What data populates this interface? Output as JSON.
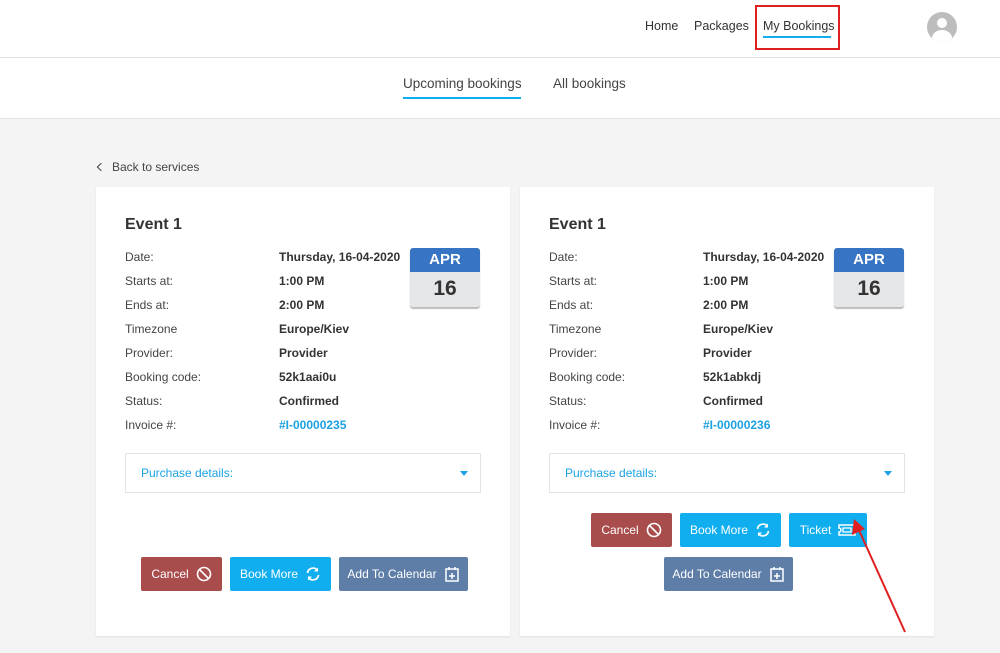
{
  "nav": {
    "items": [
      "Home",
      "Packages",
      "My Bookings"
    ],
    "active": "My Bookings"
  },
  "tabs": [
    "Upcoming bookings",
    "All bookings"
  ],
  "back_link": "Back to services",
  "labels": [
    "Date:",
    "Starts at:",
    "Ends at:",
    "Timezone",
    "Provider:",
    "Booking code:",
    "Status:",
    "Invoice #:"
  ],
  "bookings": [
    {
      "title": "Event 1",
      "values": [
        "Thursday, 16-04-2020",
        "1:00 PM",
        "2:00 PM",
        "Europe/Kiev",
        "Provider",
        "52k1aai0u",
        "Confirmed",
        "#I-00000235"
      ],
      "cal_month": "APR",
      "cal_day": "16",
      "purchase_details": "Purchase details:"
    },
    {
      "title": "Event 1",
      "values": [
        "Thursday, 16-04-2020",
        "1:00 PM",
        "2:00 PM",
        "Europe/Kiev",
        "Provider",
        "52k1abkdj",
        "Confirmed",
        "#I-00000236"
      ],
      "cal_month": "APR",
      "cal_day": "16",
      "purchase_details": "Purchase details:"
    }
  ],
  "buttons": {
    "cancel": "Cancel",
    "book_more": "Book More",
    "add_to_calendar": "Add To Calendar",
    "ticket": "Ticket"
  },
  "colors": {
    "accent": "#10aeee",
    "cancel": "#a94c4c",
    "calendar": "#5e7ea8",
    "highlight": "#e02020"
  }
}
